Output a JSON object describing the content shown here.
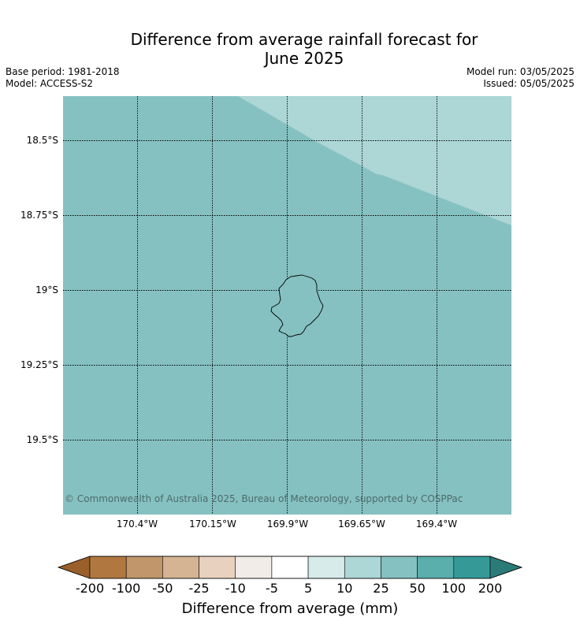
{
  "title": [
    "Difference from average rainfall forecast for",
    "June 2025"
  ],
  "meta_left": [
    "Base period: 1981-2018",
    "Model: ACCESS-S2"
  ],
  "meta_right": [
    "Model run: 03/05/2025",
    "Issued: 05/05/2025"
  ],
  "copyright": "© Commonwealth of Australia 2025, Bureau of Meteorology, supported by COSPPac",
  "lat_labels": [
    "18.5°S",
    "18.75°S",
    "19°S",
    "19.25°S",
    "19.5°S"
  ],
  "lon_labels": [
    "170.4°W",
    "170.15°W",
    "169.9°W",
    "169.65°W",
    "169.4°W"
  ],
  "map_colors": {
    "base": "#85c1c0",
    "upper_right": "#add6d6"
  },
  "colorbar": {
    "label": "Difference from average (mm)",
    "ticks": [
      "-200",
      "-100",
      "-50",
      "-25",
      "-10",
      "-5",
      "5",
      "10",
      "25",
      "50",
      "100",
      "200"
    ],
    "colors": [
      "#9a5f2a",
      "#b07840",
      "#c0966a",
      "#d5b494",
      "#e8d1bf",
      "#f2ece8",
      "#ffffff",
      "#d6ebea",
      "#add6d6",
      "#85c1c0",
      "#5aaeab",
      "#359a97",
      "#2a7a78"
    ]
  }
}
